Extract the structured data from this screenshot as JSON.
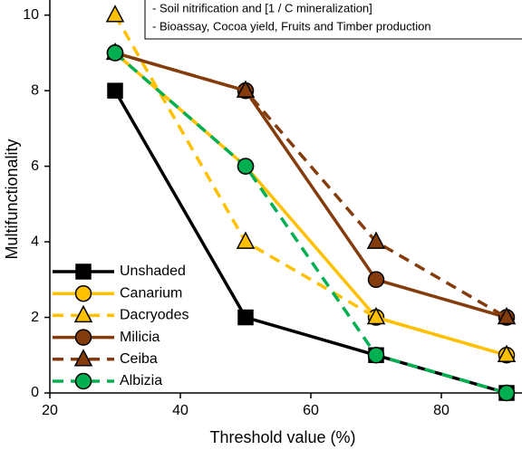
{
  "chart_data": {
    "type": "line",
    "xlabel": "Threshold value (%)",
    "ylabel": "Multifunctionality",
    "annotations": [
      "- Soil nitrification and [1 / C mineralization]",
      "- Bioassay, Cocoa yield, Fruits and Timber production"
    ],
    "x": [
      30,
      50,
      70,
      90
    ],
    "xlim": [
      20,
      92
    ],
    "xticks": [
      20,
      40,
      60,
      80
    ],
    "ylim": [
      0,
      10.4
    ],
    "yticks": [
      0,
      2,
      4,
      6,
      8,
      10
    ],
    "legend": "lower left",
    "series": [
      {
        "name": "Unshaded",
        "color": "#000000",
        "dashed": false,
        "marker": "square",
        "values": [
          8,
          2,
          1,
          0
        ]
      },
      {
        "name": "Canarium",
        "color": "#ffc000",
        "dashed": false,
        "marker": "circle",
        "values": [
          9,
          6,
          2,
          1
        ]
      },
      {
        "name": "Dacryodes",
        "color": "#ffc000",
        "dashed": true,
        "marker": "triangle",
        "values": [
          10,
          4,
          2,
          1
        ]
      },
      {
        "name": "Milicia",
        "color": "#843c0c",
        "dashed": false,
        "marker": "circle",
        "values": [
          9,
          8,
          3,
          2
        ]
      },
      {
        "name": "Ceiba",
        "color": "#843c0c",
        "dashed": true,
        "marker": "triangle",
        "values": [
          9,
          8,
          4,
          2
        ]
      },
      {
        "name": "Albizia",
        "color": "#00b050",
        "dashed": true,
        "marker": "circle",
        "values": [
          9,
          6,
          1,
          0
        ]
      }
    ]
  }
}
